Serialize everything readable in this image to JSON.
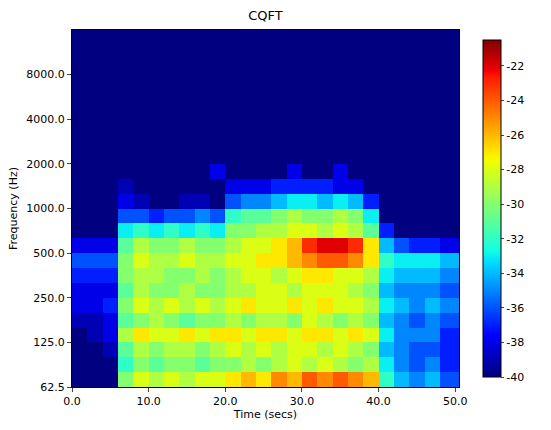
{
  "chart_data": {
    "type": "heatmap",
    "title": "CQFT",
    "x_label": "Time (secs)",
    "y_label": "Frequency (Hz)",
    "log": "y",
    "xlim": [
      0,
      50.5
    ],
    "xticks": [
      {
        "value": 0,
        "label": "0.0"
      },
      {
        "value": 10,
        "label": "10.0"
      },
      {
        "value": 20,
        "label": "20.0"
      },
      {
        "value": 30,
        "label": "30.0"
      },
      {
        "value": 40,
        "label": "40.0"
      },
      {
        "value": 50,
        "label": "50.0"
      }
    ],
    "ylim": [
      62.5,
      16000
    ],
    "yticks": [
      62.5,
      {
        "value": 125,
        "label": "125.0"
      },
      {
        "value": 250,
        "label": "250.0"
      },
      {
        "value": 500,
        "label": "500.0"
      },
      {
        "value": 1000,
        "label": "1000.0"
      },
      {
        "value": 2000,
        "label": "2000.0"
      },
      {
        "value": 4000,
        "label": "4000.0"
      },
      {
        "value": 8000,
        "label": "8000.0"
      }
    ],
    "x": [
      0,
      2,
      4,
      6,
      8,
      10,
      12,
      14,
      16,
      18,
      20,
      22,
      24,
      26,
      28,
      30,
      32,
      34,
      36,
      38,
      40,
      42,
      44,
      46,
      48,
      50.5
    ],
    "y": [
      62.5,
      78.7,
      99.2,
      125,
      157.5,
      198.4,
      250,
      315,
      396.9,
      500,
      630,
      793.7,
      1000,
      1260,
      1587,
      2000,
      2520,
      3175,
      4000,
      5040,
      6350,
      8000,
      10079,
      12699,
      16000
    ],
    "z": [
      [
        -40,
        -40,
        -40,
        -30,
        -28,
        -29,
        -28,
        -29,
        -28,
        -28,
        -27,
        -26,
        -27,
        -25,
        -26,
        -24,
        -25,
        -24,
        -25,
        -26,
        -32,
        -34,
        -35,
        -34,
        -36
      ],
      [
        -40,
        -40,
        -40,
        -32,
        -30,
        -31,
        -30,
        -30,
        -31,
        -30,
        -30,
        -29,
        -30,
        -29,
        -28,
        -29,
        -28,
        -29,
        -30,
        -29,
        -33,
        -35,
        -36,
        -35,
        -37
      ],
      [
        -40,
        -40,
        -39,
        -31,
        -29,
        -30,
        -29,
        -29,
        -30,
        -29,
        -28,
        -29,
        -28,
        -29,
        -28,
        -28,
        -29,
        -28,
        -29,
        -30,
        -34,
        -35,
        -36,
        -36,
        -37
      ],
      [
        -40,
        -39,
        -38,
        -29,
        -27,
        -28,
        -28,
        -27,
        -28,
        -27,
        -27,
        -28,
        -27,
        -27,
        -28,
        -27,
        -27,
        -28,
        -27,
        -28,
        -33,
        -35,
        -35,
        -35,
        -37
      ],
      [
        -39,
        -39,
        -38,
        -31,
        -30,
        -29,
        -30,
        -31,
        -30,
        -30,
        -29,
        -30,
        -29,
        -29,
        -30,
        -28,
        -29,
        -30,
        -29,
        -30,
        -34,
        -35,
        -36,
        -35,
        -36
      ],
      [
        -38,
        -38,
        -37,
        -30,
        -28,
        -29,
        -28,
        -29,
        -28,
        -29,
        -28,
        -27,
        -28,
        -28,
        -27,
        -28,
        -27,
        -28,
        -28,
        -29,
        -33,
        -34,
        -35,
        -34,
        -35
      ],
      [
        -38,
        -38,
        -38,
        -31,
        -29,
        -30,
        -30,
        -29,
        -30,
        -30,
        -29,
        -29,
        -28,
        -28,
        -29,
        -28,
        -28,
        -28,
        -29,
        -30,
        -34,
        -35,
        -35,
        -35,
        -36
      ],
      [
        -37,
        -37,
        -37,
        -30,
        -29,
        -29,
        -30,
        -30,
        -29,
        -30,
        -29,
        -28,
        -28,
        -29,
        -28,
        -27,
        -27,
        -28,
        -28,
        -29,
        -33,
        -34,
        -34,
        -34,
        -35
      ],
      [
        -36,
        -36,
        -36,
        -30,
        -28,
        -29,
        -29,
        -28,
        -29,
        -29,
        -28,
        -28,
        -27,
        -27,
        -26,
        -25,
        -24,
        -24,
        -25,
        -27,
        -32,
        -33,
        -33,
        -33,
        -34
      ],
      [
        -38,
        -38,
        -38,
        -31,
        -29,
        -30,
        -30,
        -29,
        -30,
        -30,
        -29,
        -28,
        -28,
        -27,
        -26,
        -23,
        -22,
        -22,
        -23,
        -27,
        -34,
        -36,
        -37,
        -37,
        -38
      ],
      [
        -40,
        -40,
        -40,
        -33,
        -32,
        -33,
        -32,
        -33,
        -32,
        -33,
        -30,
        -30,
        -29,
        -29,
        -28,
        -28,
        -29,
        -28,
        -29,
        -31,
        -37,
        -40,
        -40,
        -40,
        -40
      ],
      [
        -40,
        -40,
        -40,
        -36,
        -36,
        -37,
        -36,
        -36,
        -35,
        -36,
        -32,
        -31,
        -31,
        -30,
        -29,
        -30,
        -30,
        -29,
        -30,
        -33,
        -40,
        -40,
        -40,
        -40,
        -40
      ],
      [
        -40,
        -40,
        -40,
        -38,
        -39,
        -40,
        -40,
        -39,
        -39,
        -40,
        -36,
        -35,
        -35,
        -34,
        -33,
        -33,
        -34,
        -33,
        -34,
        -37,
        -40,
        -40,
        -40,
        -40,
        -40
      ],
      [
        -40,
        -40,
        -40,
        -39,
        -40,
        -40,
        -40,
        -40,
        -40,
        -40,
        -38,
        -38,
        -38,
        -37,
        -37,
        -37,
        -37,
        -38,
        -38,
        -40,
        -40,
        -40,
        -40,
        -40,
        -40
      ],
      [
        -40,
        -40,
        -40,
        -40,
        -40,
        -40,
        -40,
        -40,
        -40,
        -38,
        -40,
        -40,
        -40,
        -40,
        -38,
        -40,
        -40,
        -38,
        -40,
        -40,
        -40,
        -40,
        -40,
        -40,
        -40
      ],
      [
        -40,
        -40,
        -40,
        -40,
        -40,
        -40,
        -40,
        -40,
        -40,
        -40,
        -40,
        -40,
        -40,
        -40,
        -40,
        -40,
        -40,
        -40,
        -40,
        -40,
        -40,
        -40,
        -40,
        -40,
        -40
      ],
      [
        -40,
        -40,
        -40,
        -40,
        -40,
        -40,
        -40,
        -40,
        -40,
        -40,
        -40,
        -40,
        -40,
        -40,
        -40,
        -40,
        -40,
        -40,
        -40,
        -40,
        -40,
        -40,
        -40,
        -40,
        -40
      ],
      [
        -40,
        -40,
        -40,
        -40,
        -40,
        -40,
        -40,
        -40,
        -40,
        -40,
        -40,
        -40,
        -40,
        -40,
        -40,
        -40,
        -40,
        -40,
        -40,
        -40,
        -40,
        -40,
        -40,
        -40,
        -40
      ],
      [
        -40,
        -40,
        -40,
        -40,
        -40,
        -40,
        -40,
        -40,
        -40,
        -40,
        -40,
        -40,
        -40,
        -40,
        -40,
        -40,
        -40,
        -40,
        -40,
        -40,
        -40,
        -40,
        -40,
        -40,
        -40
      ],
      [
        -40,
        -40,
        -40,
        -40,
        -40,
        -40,
        -40,
        -40,
        -40,
        -40,
        -40,
        -40,
        -40,
        -40,
        -40,
        -40,
        -40,
        -40,
        -40,
        -40,
        -40,
        -40,
        -40,
        -40,
        -40
      ],
      [
        -40,
        -40,
        -40,
        -40,
        -40,
        -40,
        -40,
        -40,
        -40,
        -40,
        -40,
        -40,
        -40,
        -40,
        -40,
        -40,
        -40,
        -40,
        -40,
        -40,
        -40,
        -40,
        -40,
        -40,
        -40
      ],
      [
        -40,
        -40,
        -40,
        -40,
        -40,
        -40,
        -40,
        -40,
        -40,
        -40,
        -40,
        -40,
        -40,
        -40,
        -40,
        -40,
        -40,
        -40,
        -40,
        -40,
        -40,
        -40,
        -40,
        -40,
        -40
      ],
      [
        -40,
        -40,
        -40,
        -40,
        -40,
        -40,
        -40,
        -40,
        -40,
        -40,
        -40,
        -40,
        -40,
        -40,
        -40,
        -40,
        -40,
        -40,
        -40,
        -40,
        -40,
        -40,
        -40,
        -40,
        -40
      ],
      [
        -40,
        -40,
        -40,
        -40,
        -40,
        -40,
        -40,
        -40,
        -40,
        -40,
        -40,
        -40,
        -40,
        -40,
        -40,
        -40,
        -40,
        -40,
        -40,
        -40,
        -40,
        -40,
        -40,
        -40,
        -40
      ]
    ],
    "zlim": [
      -40,
      -20.5
    ],
    "zticks": [
      -22,
      -24,
      -26,
      -28,
      -30,
      -32,
      -34,
      -36,
      -38,
      -40
    ]
  }
}
